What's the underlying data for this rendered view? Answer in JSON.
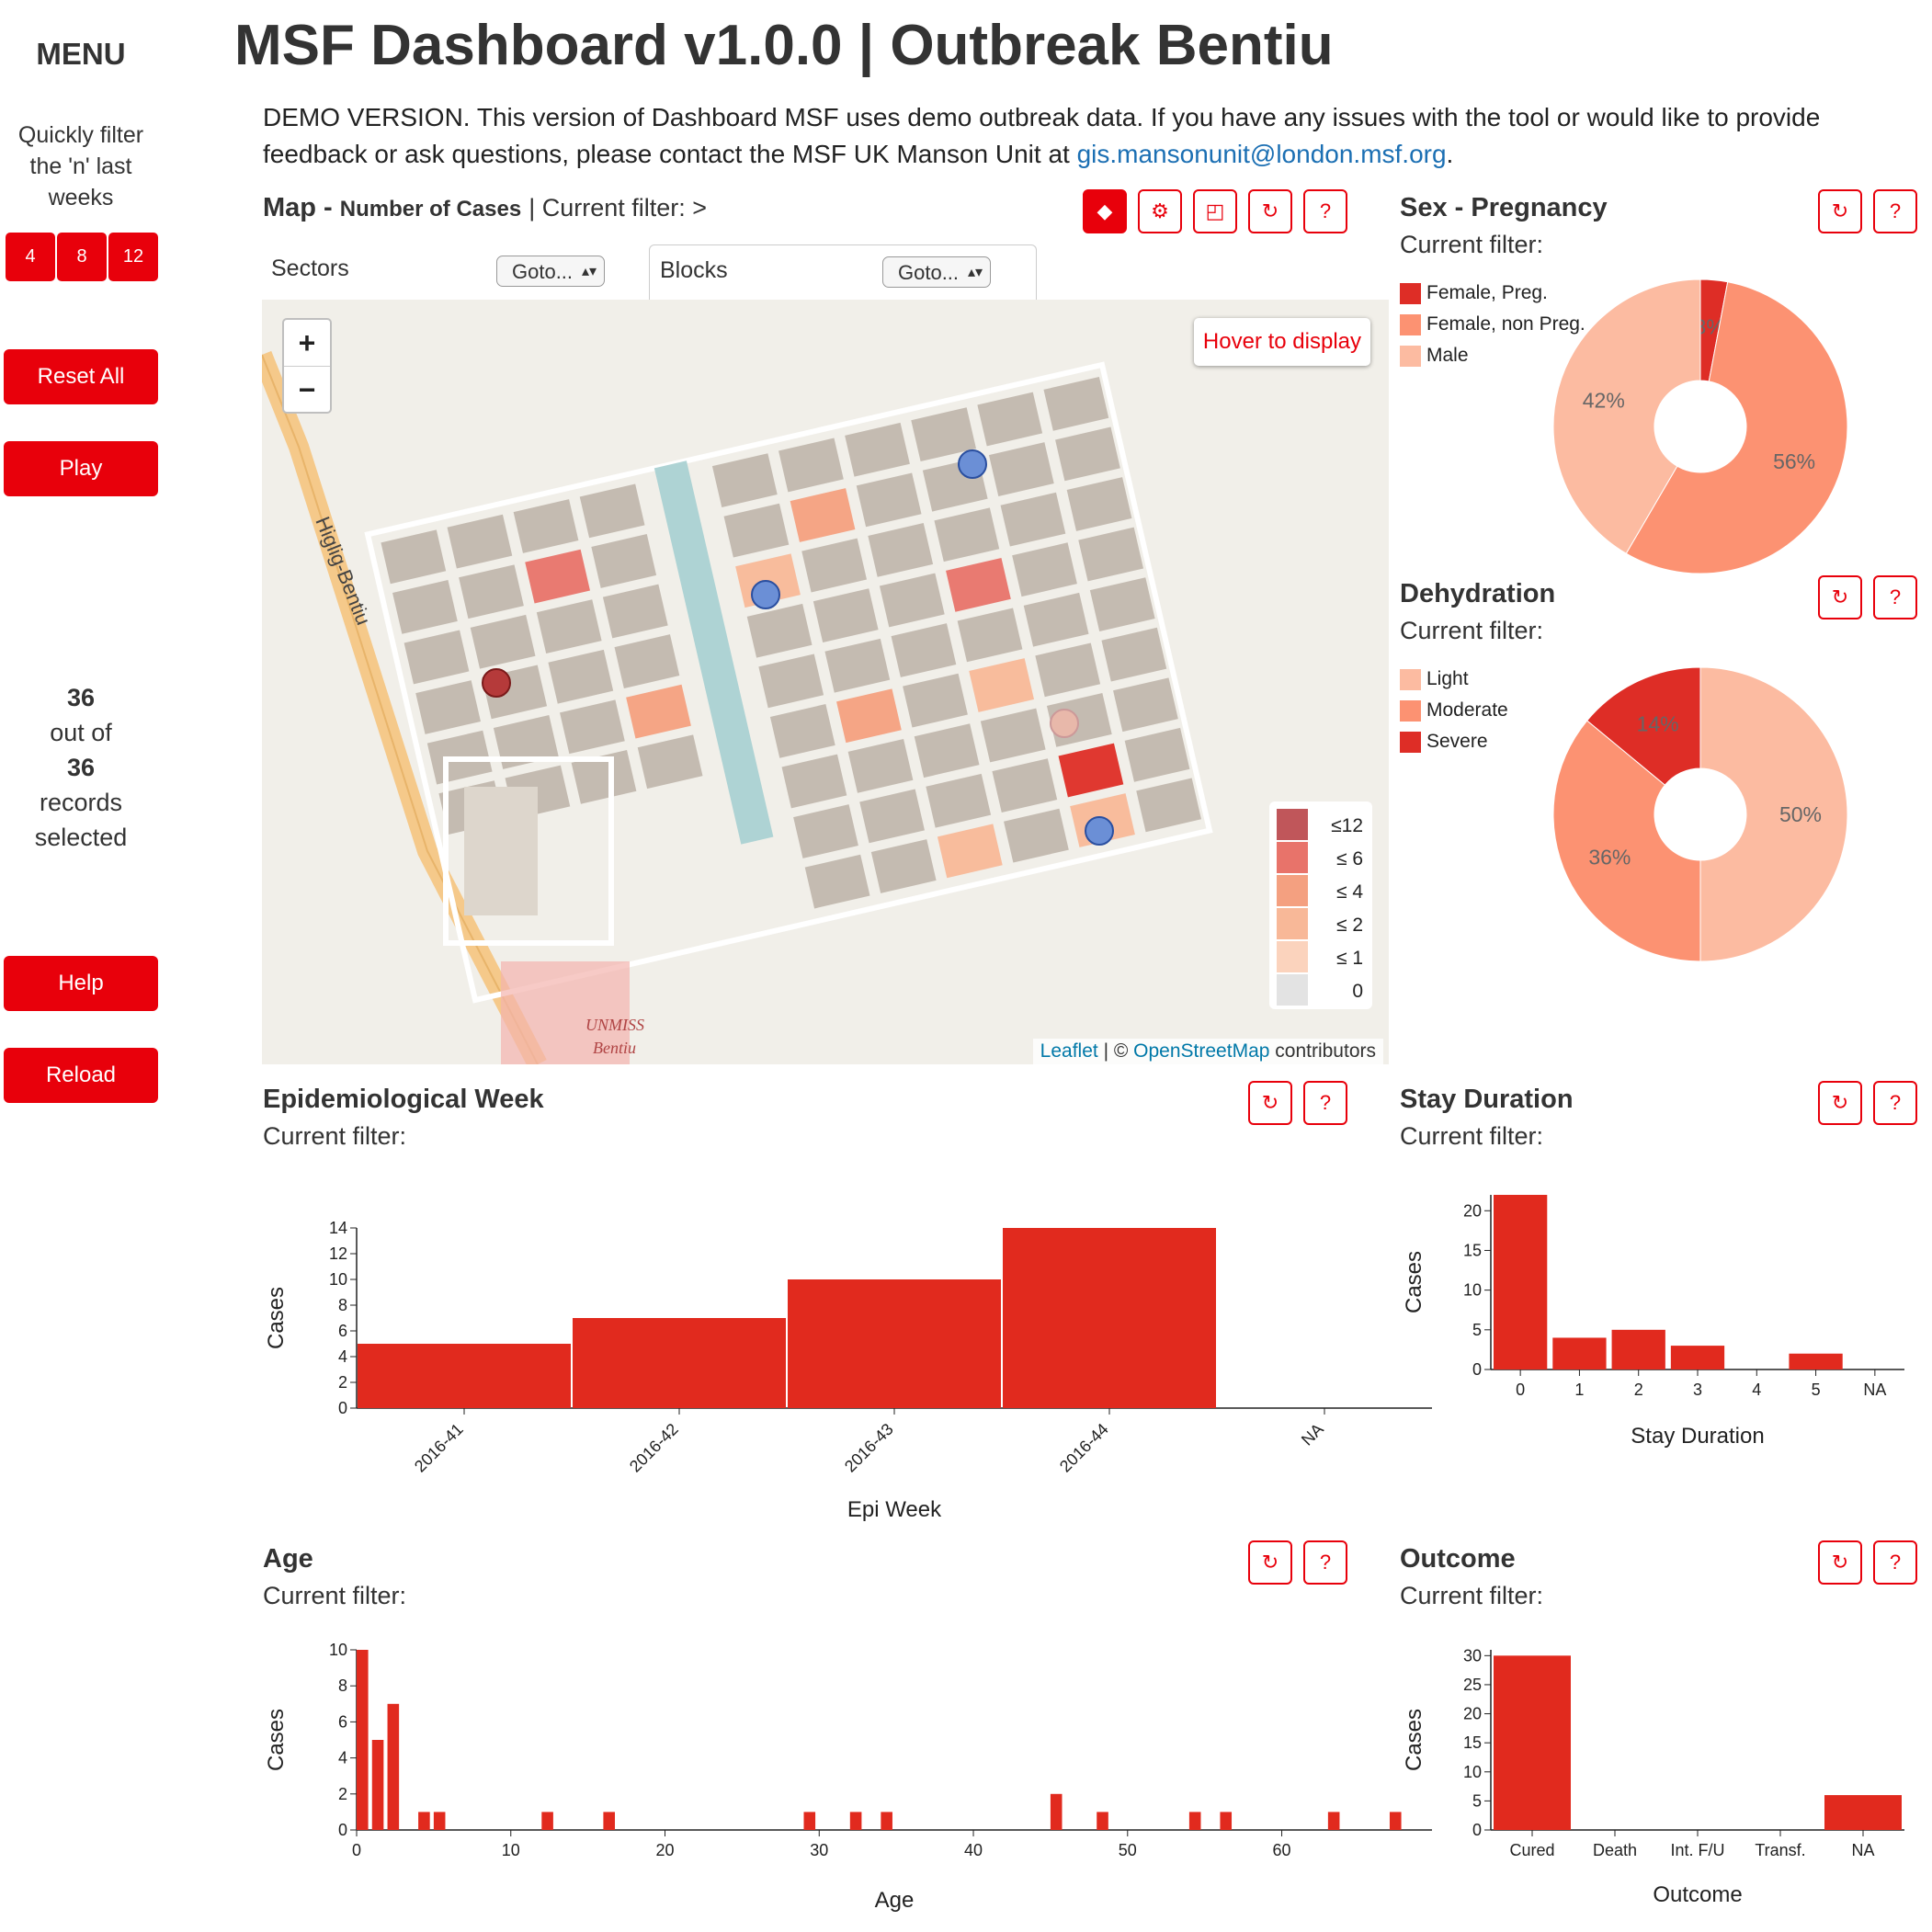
{
  "sidebar": {
    "menu_title": "MENU",
    "quick_filter_text": "Quickly filter the 'n' last weeks",
    "week_buttons": [
      "4",
      "8",
      "12"
    ],
    "reset_label": "Reset All",
    "play_label": "Play",
    "records_count": "36",
    "records_out_of": "out of",
    "records_total": "36",
    "records_label": "records",
    "records_selected": "selected",
    "help_label": "Help",
    "reload_label": "Reload"
  },
  "header": {
    "title": "MSF Dashboard v1.0.0 | Outbreak Bentiu",
    "demo_text": "DEMO VERSION. This version of Dashboard MSF uses demo outbreak data. If you have any issues with the tool or would like to provide feedback or ask questions, please contact the MSF UK Manson Unit at",
    "email": "gis.mansonunit@london.msf.org",
    "period": "."
  },
  "map_panel": {
    "title_bold": "Map - ",
    "title_metric": "Number of Cases",
    "filter_text": "| Current filter: >",
    "sectors_label": "Sectors",
    "sectors_select": "Goto...",
    "blocks_label": "Blocks",
    "blocks_select": "Goto...",
    "zoom_in": "+",
    "zoom_out": "−",
    "hover_text": "Hover to display",
    "road_label": "Higlig-Bentiu",
    "unmiss_label": "UNMISS",
    "bentiu_label": "Bentiu",
    "attribution_leaflet": "Leaflet",
    "attribution_sep": " | © ",
    "attribution_osm": "OpenStreetMap",
    "attribution_rest": " contributors",
    "legend": [
      {
        "label": "≤12",
        "color": "#c0565a"
      },
      {
        "label": "≤  6",
        "color": "#e8736a"
      },
      {
        "label": "≤  4",
        "color": "#f4a080"
      },
      {
        "label": "≤  2",
        "color": "#f8b898"
      },
      {
        "label": "≤  1",
        "color": "#fbd3bd"
      },
      {
        "label": "0",
        "color": "#e3e3e3"
      }
    ],
    "buttons": [
      "◆",
      "⚙",
      "◰",
      "↻",
      "?"
    ]
  },
  "sex_panel": {
    "title": "Sex - Pregnancy",
    "filter": "Current filter:",
    "legend": [
      {
        "label": "Female, Preg.",
        "color": "#de2d26"
      },
      {
        "label": "Female, non Preg.",
        "color": "#fc9272"
      },
      {
        "label": "Male",
        "color": "#fcbba1"
      }
    ],
    "buttons": [
      "↻",
      "?"
    ]
  },
  "dehydration_panel": {
    "title": "Dehydration",
    "filter": "Current filter:",
    "legend": [
      {
        "label": "Light",
        "color": "#fcbba1"
      },
      {
        "label": "Moderate",
        "color": "#fc9272"
      },
      {
        "label": "Severe",
        "color": "#de2d26"
      }
    ],
    "buttons": [
      "↻",
      "?"
    ]
  },
  "epi_panel": {
    "title": "Epidemiological Week",
    "filter": "Current filter:",
    "buttons": [
      "↻",
      "?"
    ]
  },
  "stay_panel": {
    "title": "Stay Duration",
    "filter": "Current filter:",
    "buttons": [
      "↻",
      "?"
    ]
  },
  "age_panel": {
    "title": "Age",
    "filter": "Current filter:",
    "buttons": [
      "↻",
      "?"
    ]
  },
  "outcome_panel": {
    "title": "Outcome",
    "filter": "Current filter:",
    "buttons": [
      "↻",
      "?"
    ]
  },
  "chart_data": [
    {
      "id": "sex",
      "type": "pie",
      "categories": [
        "Female, Preg.",
        "Female, non Preg.",
        "Male"
      ],
      "values": [
        3,
        56,
        42
      ],
      "labels": [
        "3%",
        "56%",
        "42%"
      ],
      "colors": [
        "#de2d26",
        "#fc9272",
        "#fcbba1"
      ]
    },
    {
      "id": "dehydration",
      "type": "pie",
      "categories": [
        "Light",
        "Moderate",
        "Severe"
      ],
      "values": [
        50,
        36,
        14
      ],
      "labels": [
        "50%",
        "36%",
        "14%"
      ],
      "colors": [
        "#fcbba1",
        "#fc9272",
        "#de2d26"
      ]
    },
    {
      "id": "epi",
      "type": "bar",
      "categories": [
        "2016-41",
        "2016-42",
        "2016-43",
        "2016-44",
        "NA"
      ],
      "values": [
        5,
        7,
        10,
        14,
        0
      ],
      "yticks": [
        0,
        2,
        4,
        6,
        8,
        10,
        12,
        14
      ],
      "ylim": [
        0,
        14
      ],
      "xlabel": "Epi Week",
      "ylabel": "Cases",
      "color": "#e12a1e"
    },
    {
      "id": "stay",
      "type": "bar",
      "categories": [
        "0",
        "1",
        "2",
        "3",
        "4",
        "5",
        "NA"
      ],
      "values": [
        22,
        4,
        5,
        3,
        0,
        2,
        0
      ],
      "yticks": [
        0,
        5,
        10,
        15,
        20
      ],
      "ylim": [
        0,
        22
      ],
      "xlabel": "Stay Duration",
      "ylabel": "Cases",
      "color": "#e12a1e"
    },
    {
      "id": "age",
      "type": "bar",
      "x": [
        0,
        1,
        2,
        4,
        5,
        12,
        16,
        29,
        32,
        34,
        45,
        48,
        54,
        56,
        63,
        67
      ],
      "values": [
        10,
        5,
        7,
        1,
        1,
        1,
        1,
        1,
        1,
        1,
        2,
        1,
        1,
        1,
        1,
        1
      ],
      "xticks": [
        0,
        10,
        20,
        30,
        40,
        50,
        60
      ],
      "yticks": [
        0,
        2,
        4,
        6,
        8,
        10
      ],
      "xlim": [
        0,
        68
      ],
      "ylim": [
        0,
        10
      ],
      "xlabel": "Age",
      "ylabel": "Cases",
      "color": "#e12a1e"
    },
    {
      "id": "outcome",
      "type": "bar",
      "categories": [
        "Cured",
        "Death",
        "Int. F/U",
        "Transf.",
        "NA"
      ],
      "values": [
        30,
        0,
        0,
        0,
        6
      ],
      "yticks": [
        0,
        5,
        10,
        15,
        20,
        25,
        30
      ],
      "ylim": [
        0,
        31
      ],
      "xlabel": "Outcome",
      "ylabel": "Cases",
      "color": "#e12a1e"
    }
  ]
}
